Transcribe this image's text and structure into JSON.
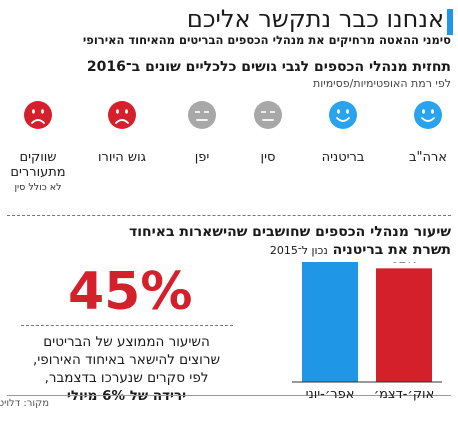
{
  "header": {
    "title": "אנחנו כבר נתקשר אליכם",
    "subtitle": "סימני ההאטה מרחיקים את מנהלי הכספים הבריטים מהאיחוד האירופי"
  },
  "optimism": {
    "title": "תחזית מנהלי הכספים לגבי גושים כלכליים שונים ב־2016",
    "subtitle": "לפי רמת האופטימיות/פסימיות",
    "items": [
      {
        "label": "ארה\"ב",
        "note": "",
        "color": "#2aa3ee",
        "face": "happy"
      },
      {
        "label": "בריטניה",
        "note": "",
        "color": "#2aa3ee",
        "face": "happy"
      },
      {
        "label": "סין",
        "note": "",
        "color": "#a8a8a8",
        "face": "neutral"
      },
      {
        "label": "יפן",
        "note": "",
        "color": "#a8a8a8",
        "face": "neutral"
      },
      {
        "label": "גוש היורו",
        "note": "",
        "color": "#d3202b",
        "face": "sad"
      },
      {
        "label": "שווקים מתעוררים",
        "note": "לא כולל סין",
        "color": "#d3202b",
        "face": "sad"
      }
    ]
  },
  "stay": {
    "title_line1": "שיעור מנהלי הכספים שחושבים שהישארות באיחוד",
    "title_line2": "תשרת את בריטניה",
    "title_note": "נכון ל־2015",
    "big_pct": "45%",
    "stat_line1": "השיעור הממוצע של הבריטים",
    "stat_line2": "שרוצים להישאר באיחוד האירופי,",
    "stat_line3": "לפי סקרים שנערכו בדצמבר,",
    "stat_line4": "ירידה של 6% מיולי"
  },
  "chart_data": {
    "type": "bar",
    "title": "שיעור מנהלי הכספים שחושבים שהישארות באיחוד תשרת את בריטניה",
    "categories": [
      "אפר׳-יוני",
      "אוק׳-דצמ׳"
    ],
    "values": [
      74,
      62
    ],
    "value_labels": [
      "74%",
      "62%"
    ],
    "colors": [
      "#1f97e6",
      "#d3202b"
    ],
    "ylim": [
      0,
      100
    ],
    "grid": false
  },
  "footer": {
    "source": "מקור: דלויט"
  }
}
